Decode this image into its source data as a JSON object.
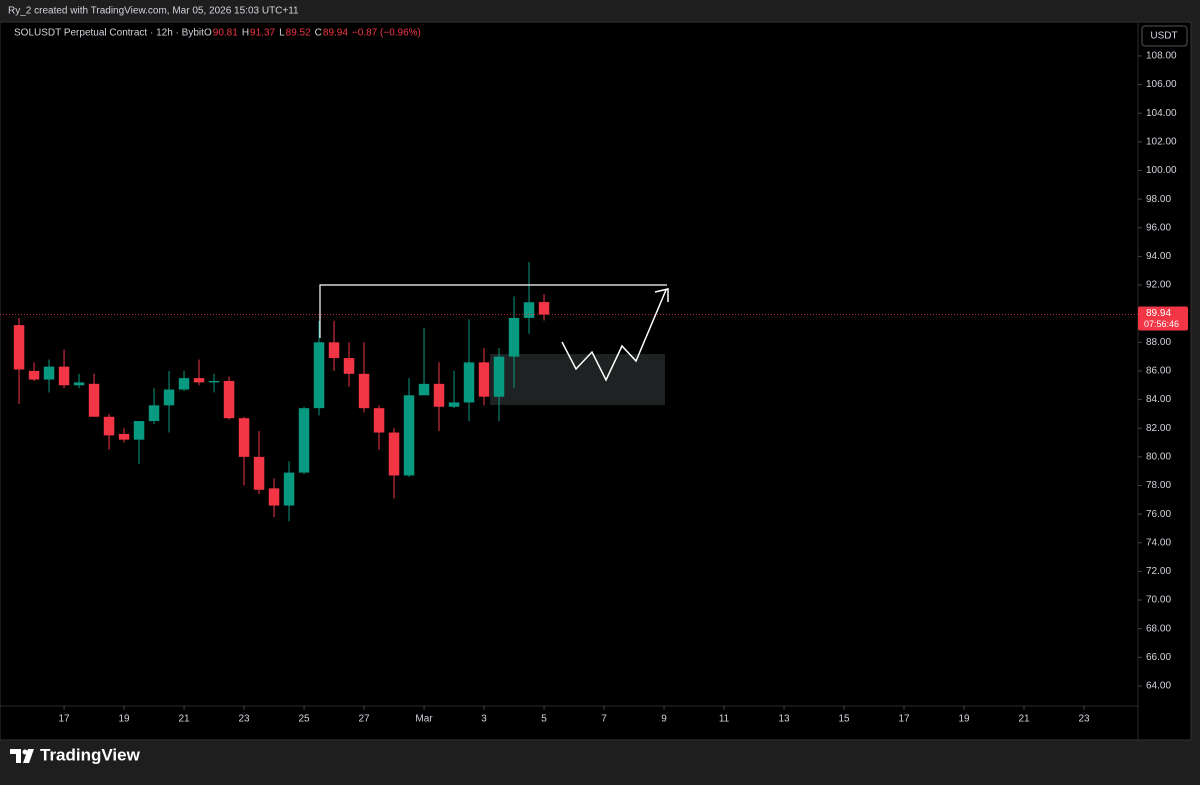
{
  "header": {
    "credit": "Ry_2 created with TradingView.com, Mar 05, 2026 15:03 UTC+11"
  },
  "footer": {
    "logo": "TradingView"
  },
  "chart_data": {
    "type": "candlestick",
    "title": "SOLUSDT Perpetual Contract · 12h · Bybit",
    "legend_values": [
      {
        "key": "O",
        "value": 90.81
      },
      {
        "key": "H",
        "value": 91.37
      },
      {
        "key": "L",
        "value": 89.52
      },
      {
        "key": "C",
        "value": 89.94
      }
    ],
    "change": "−0.87 (−0.96%)",
    "currency": "USDT",
    "last_price": {
      "value": 89.94,
      "label": "89.94",
      "countdown": "07:56:46"
    },
    "up_color": "#089981",
    "down_color": "#f23645",
    "open": [
      89.2,
      86.0,
      85.4,
      86.3,
      85.0,
      85.1,
      82.8,
      81.6,
      81.2,
      82.5,
      83.6,
      84.7,
      85.5,
      85.2,
      85.3,
      82.7,
      80.0,
      77.8,
      76.6,
      78.9,
      83.4,
      88.0,
      86.9,
      85.8,
      83.4,
      81.7,
      78.7,
      84.3,
      85.1,
      83.5,
      83.8,
      86.6,
      84.2,
      87.0,
      89.7,
      90.81
    ],
    "high": [
      89.7,
      86.6,
      86.8,
      87.5,
      85.8,
      85.8,
      83.0,
      82.0,
      82.5,
      84.8,
      86.0,
      86.0,
      86.8,
      85.8,
      85.6,
      82.8,
      81.8,
      78.5,
      79.7,
      83.5,
      89.5,
      89.5,
      88.0,
      88.0,
      83.6,
      82.0,
      85.5,
      89.0,
      86.6,
      86.0,
      89.6,
      87.6,
      87.6,
      91.2,
      93.6,
      91.37
    ],
    "low": [
      83.7,
      85.3,
      84.5,
      84.8,
      84.8,
      82.8,
      80.5,
      81.0,
      79.5,
      82.3,
      81.7,
      84.6,
      85.0,
      84.5,
      82.6,
      78.0,
      77.4,
      75.8,
      75.5,
      78.8,
      82.9,
      86.0,
      84.9,
      83.1,
      80.5,
      77.1,
      78.6,
      84.3,
      81.8,
      83.4,
      82.5,
      83.6,
      82.5,
      84.8,
      88.6,
      89.52
    ],
    "close": [
      86.1,
      85.4,
      86.3,
      85.0,
      85.2,
      82.8,
      81.5,
      81.2,
      82.5,
      83.6,
      84.7,
      85.5,
      85.2,
      85.3,
      82.7,
      80.0,
      77.7,
      76.6,
      78.9,
      83.4,
      88.0,
      86.9,
      85.8,
      83.4,
      81.7,
      78.7,
      84.3,
      85.1,
      83.5,
      83.8,
      86.6,
      84.2,
      87.0,
      89.7,
      90.8,
      89.94
    ],
    "xlim": [
      -1.27,
      74.6
    ],
    "xticks": [
      {
        "value": 3,
        "label": "17"
      },
      {
        "value": 7,
        "label": "19"
      },
      {
        "value": 11,
        "label": "21"
      },
      {
        "value": 15,
        "label": "23"
      },
      {
        "value": 19,
        "label": "25"
      },
      {
        "value": 23,
        "label": "27"
      },
      {
        "value": 27,
        "label": "Mar"
      },
      {
        "value": 31,
        "label": "3"
      },
      {
        "value": 35,
        "label": "5"
      },
      {
        "value": 39,
        "label": "7"
      },
      {
        "value": 43,
        "label": "9"
      },
      {
        "value": 47,
        "label": "11"
      },
      {
        "value": 51,
        "label": "13"
      },
      {
        "value": 55,
        "label": "15"
      },
      {
        "value": 59,
        "label": "17"
      },
      {
        "value": 63,
        "label": "19"
      },
      {
        "value": 67,
        "label": "21"
      },
      {
        "value": 71,
        "label": "23"
      }
    ],
    "ylim": [
      62.6,
      110.37
    ],
    "yticks": [
      {
        "value": 64,
        "label": "64.00"
      },
      {
        "value": 66,
        "label": "66.00"
      },
      {
        "value": 68,
        "label": "68.00"
      },
      {
        "value": 70,
        "label": "70.00"
      },
      {
        "value": 72,
        "label": "72.00"
      },
      {
        "value": 74,
        "label": "74.00"
      },
      {
        "value": 76,
        "label": "76.00"
      },
      {
        "value": 78,
        "label": "78.00"
      },
      {
        "value": 80,
        "label": "80.00"
      },
      {
        "value": 82,
        "label": "82.00"
      },
      {
        "value": 84,
        "label": "84.00"
      },
      {
        "value": 86,
        "label": "86.00"
      },
      {
        "value": 88,
        "label": "88.00"
      },
      {
        "value": 90,
        "label": "90.00"
      },
      {
        "value": 92,
        "label": "92.00"
      },
      {
        "value": 94,
        "label": "94.00"
      },
      {
        "value": 96,
        "label": "96.00"
      },
      {
        "value": 98,
        "label": "98.00"
      },
      {
        "value": 100,
        "label": "100.00"
      },
      {
        "value": 102,
        "label": "102.00"
      },
      {
        "value": 104,
        "label": "104.00"
      },
      {
        "value": 106,
        "label": "106.00"
      },
      {
        "value": 108,
        "label": "108.00"
      }
    ],
    "grid": false
  }
}
